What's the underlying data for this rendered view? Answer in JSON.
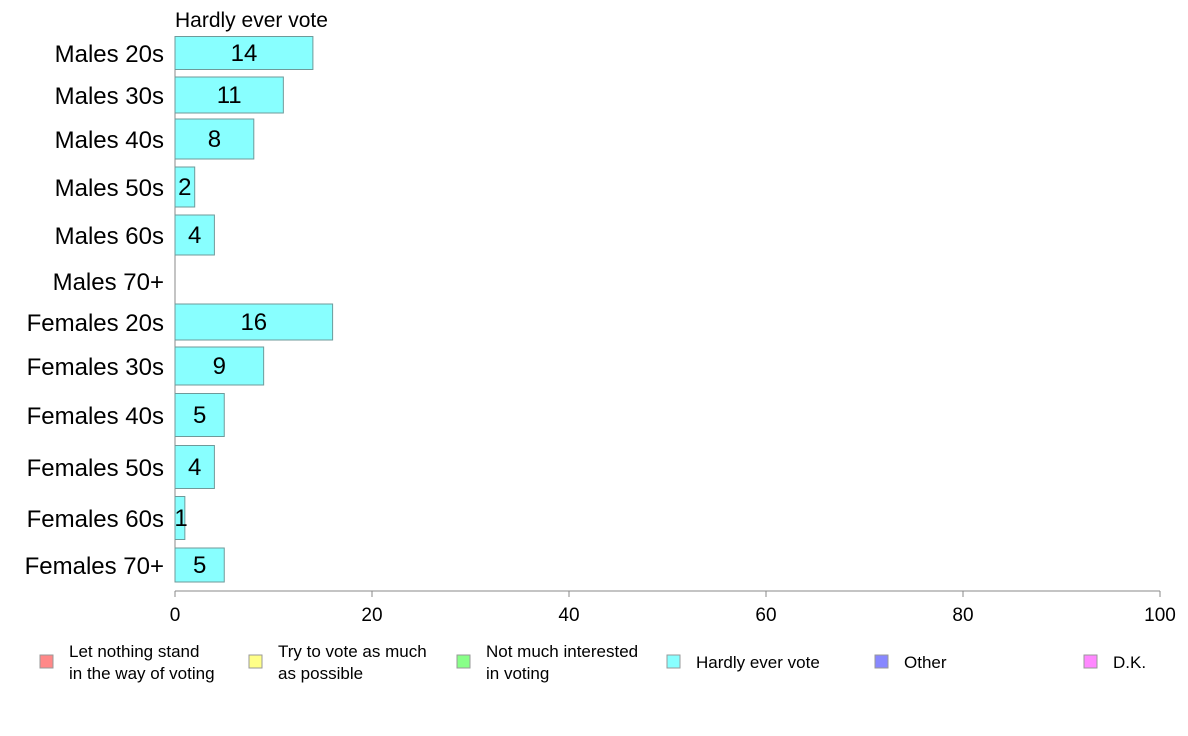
{
  "chart_data": {
    "type": "bar",
    "orientation": "horizontal",
    "panel_title": "Hardly ever vote",
    "categories": [
      "Males 20s",
      "Males 30s",
      "Males 40s",
      "Males 50s",
      "Males 60s",
      "Males 70+",
      "Females 20s",
      "Females 30s",
      "Females 40s",
      "Females 50s",
      "Females 60s",
      "Females 70+"
    ],
    "series": [
      {
        "name": "Hardly ever vote",
        "color": "#88ffff",
        "values": [
          14,
          11,
          8,
          2,
          4,
          0,
          16,
          9,
          5,
          4,
          1,
          5
        ],
        "labels": [
          "14",
          "11",
          "8",
          "2",
          "4",
          "",
          "16",
          "9",
          "5",
          "4",
          "1",
          "5"
        ]
      }
    ],
    "xlim": [
      0,
      100
    ],
    "xticks": [
      0,
      20,
      40,
      60,
      80,
      100
    ],
    "grid": false,
    "legend_position": "bottom",
    "legend": [
      {
        "lines": [
          "Let nothing stand",
          "in the way of voting"
        ],
        "color": "#ff8888"
      },
      {
        "lines": [
          "Try to vote as much",
          "as possible"
        ],
        "color": "#ffff88"
      },
      {
        "lines": [
          "Not much interested",
          "in voting"
        ],
        "color": "#88ff88"
      },
      {
        "lines": [
          "Hardly ever vote"
        ],
        "color": "#88ffff"
      },
      {
        "lines": [
          "Other"
        ],
        "color": "#8888ff"
      },
      {
        "lines": [
          "D.K."
        ],
        "color": "#ff88ff"
      }
    ]
  }
}
